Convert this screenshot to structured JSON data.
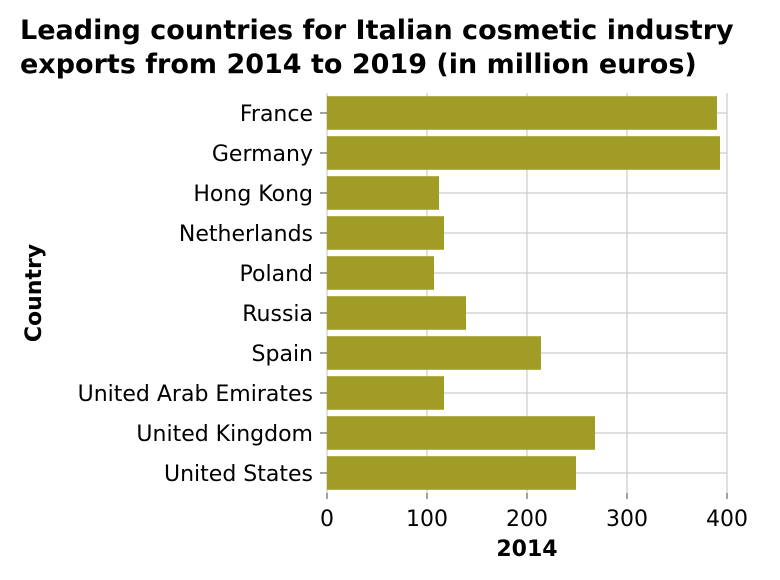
{
  "chart_data": {
    "type": "bar",
    "orientation": "horizontal",
    "title_lines": [
      "Leading countries for Italian cosmetic industry",
      "exports from 2014 to 2019 (in million euros)"
    ],
    "xlabel": "2014",
    "ylabel": "Country",
    "categories": [
      "France",
      "Germany",
      "Hong Kong",
      "Netherlands",
      "Poland",
      "Russia",
      "Spain",
      "United Arab Emirates",
      "United Kingdom",
      "United States"
    ],
    "values": [
      390,
      393,
      112,
      117,
      107,
      139,
      214,
      117,
      268,
      249
    ],
    "xlim": [
      0,
      400
    ],
    "xticks": [
      0,
      100,
      200,
      300,
      400
    ],
    "grid": true,
    "bar_color": "#a09c25"
  }
}
